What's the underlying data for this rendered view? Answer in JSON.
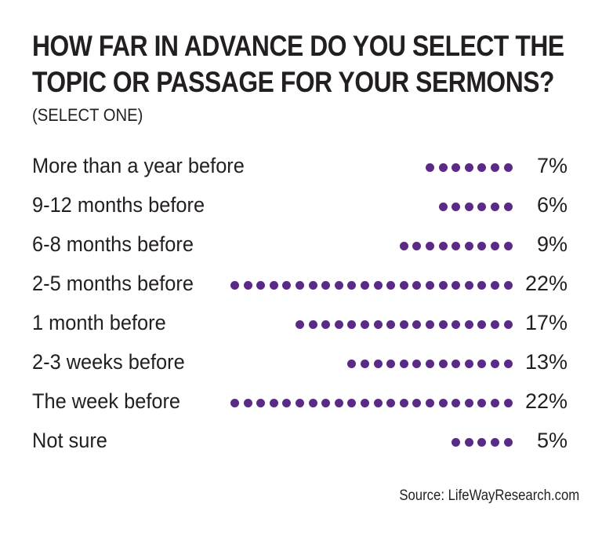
{
  "chart_data": {
    "type": "bar",
    "title_lines": [
      "HOW FAR IN ADVANCE DO YOU SELECT THE",
      "TOPIC OR PASSAGE FOR YOUR SERMONS?"
    ],
    "subtitle": "(SELECT ONE)",
    "categories": [
      "More than a year before",
      "9-12 months before",
      "6-8 months before",
      "2-5 months before",
      "1 month before",
      "2-3 weeks before",
      "The week before",
      "Not sure"
    ],
    "values": [
      7,
      6,
      9,
      22,
      17,
      13,
      22,
      5
    ],
    "value_labels": [
      "7%",
      "6%",
      "9%",
      "22%",
      "17%",
      "13%",
      "22%",
      "5%"
    ],
    "unit": "%",
    "mark": "dot",
    "dots_per_percent": 1,
    "dot_color": "#5b2a86",
    "source": "Source: LifeWayResearch.com"
  }
}
